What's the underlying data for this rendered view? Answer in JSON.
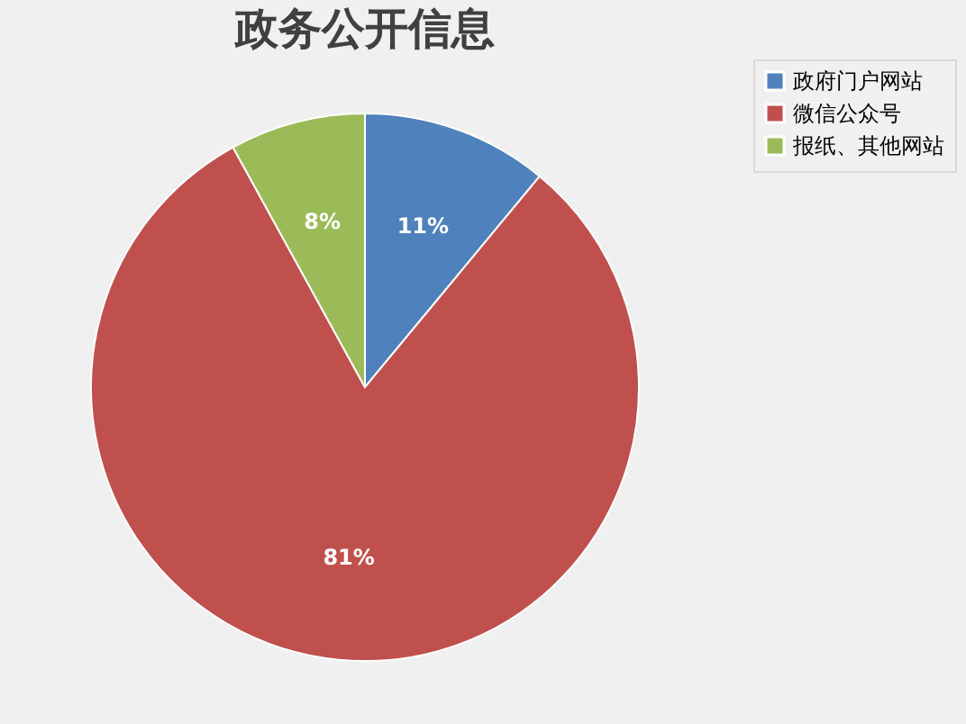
{
  "chart_data": {
    "type": "pie",
    "title": "政务公开信息",
    "categories": [
      "政府门户网站",
      "微信公众号",
      "报纸、其他网站"
    ],
    "values": [
      11,
      81,
      8
    ],
    "colors": [
      "#4f81bd",
      "#c0504d",
      "#9bbb59"
    ],
    "value_labels": [
      "11%",
      "81%",
      "8%"
    ],
    "legend": "right"
  }
}
